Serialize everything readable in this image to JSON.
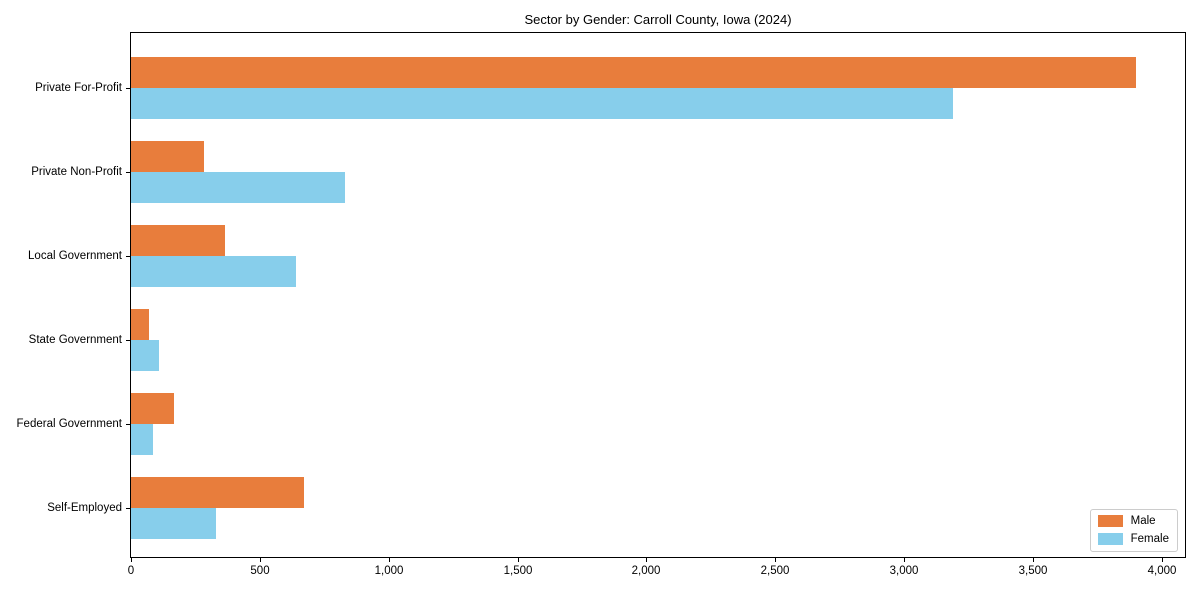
{
  "chart_data": {
    "type": "bar",
    "orientation": "horizontal",
    "title": "Sector by Gender: Carroll County, Iowa (2024)",
    "categories": [
      "Private For-Profit",
      "Private Non-Profit",
      "Local Government",
      "State Government",
      "Federal Government",
      "Self-Employed"
    ],
    "series": [
      {
        "name": "Male",
        "color": "#e87d3c",
        "values": [
          3900,
          283,
          364,
          68,
          166,
          670
        ]
      },
      {
        "name": "Female",
        "color": "#87ceeb",
        "values": [
          3190,
          830,
          640,
          108,
          85,
          330
        ]
      }
    ],
    "xlim": [
      0,
      4090
    ],
    "xticks": [
      0,
      500,
      1000,
      1500,
      2000,
      2500,
      3000,
      3500,
      4000
    ],
    "xtick_labels": [
      "0",
      "500",
      "1,000",
      "1,500",
      "2,000",
      "2,500",
      "3,000",
      "3,500",
      "4,000"
    ],
    "ylabel": "",
    "xlabel": "",
    "grid": false,
    "legend": {
      "position": "lower right",
      "entries": [
        "Male",
        "Female"
      ]
    },
    "colors": {
      "male": "#e87d3c",
      "female": "#87ceeb",
      "axis": "#000000",
      "legend_border": "#cccccc",
      "background": "#ffffff"
    }
  }
}
